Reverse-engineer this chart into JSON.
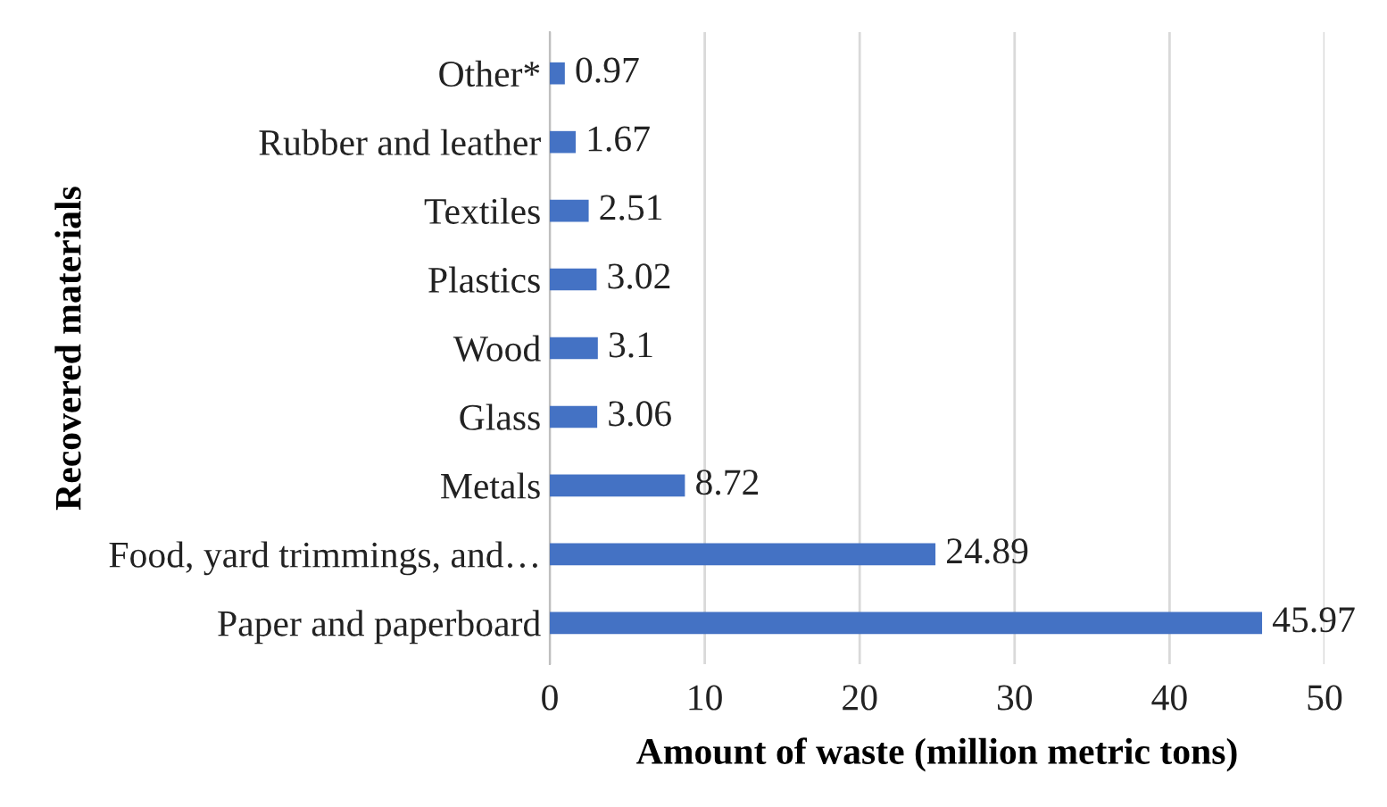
{
  "chart_data": {
    "type": "bar",
    "orientation": "horizontal",
    "categories": [
      "Other*",
      "Rubber and leather",
      "Textiles",
      "Plastics",
      "Wood",
      "Glass",
      "Metals",
      "Food, yard trimmings, and…",
      "Paper and paperboard"
    ],
    "values": [
      0.97,
      1.67,
      2.51,
      3.02,
      3.1,
      3.06,
      8.72,
      24.89,
      45.97
    ],
    "color": "#4472c4",
    "xlim": [
      0,
      50
    ],
    "xticks": [
      0,
      10,
      20,
      30,
      40,
      50
    ],
    "xlabel": "Amount of waste (million metric tons)",
    "ylabel": "Recovered materials",
    "grid": "x",
    "data_labels": true,
    "legend": false
  }
}
